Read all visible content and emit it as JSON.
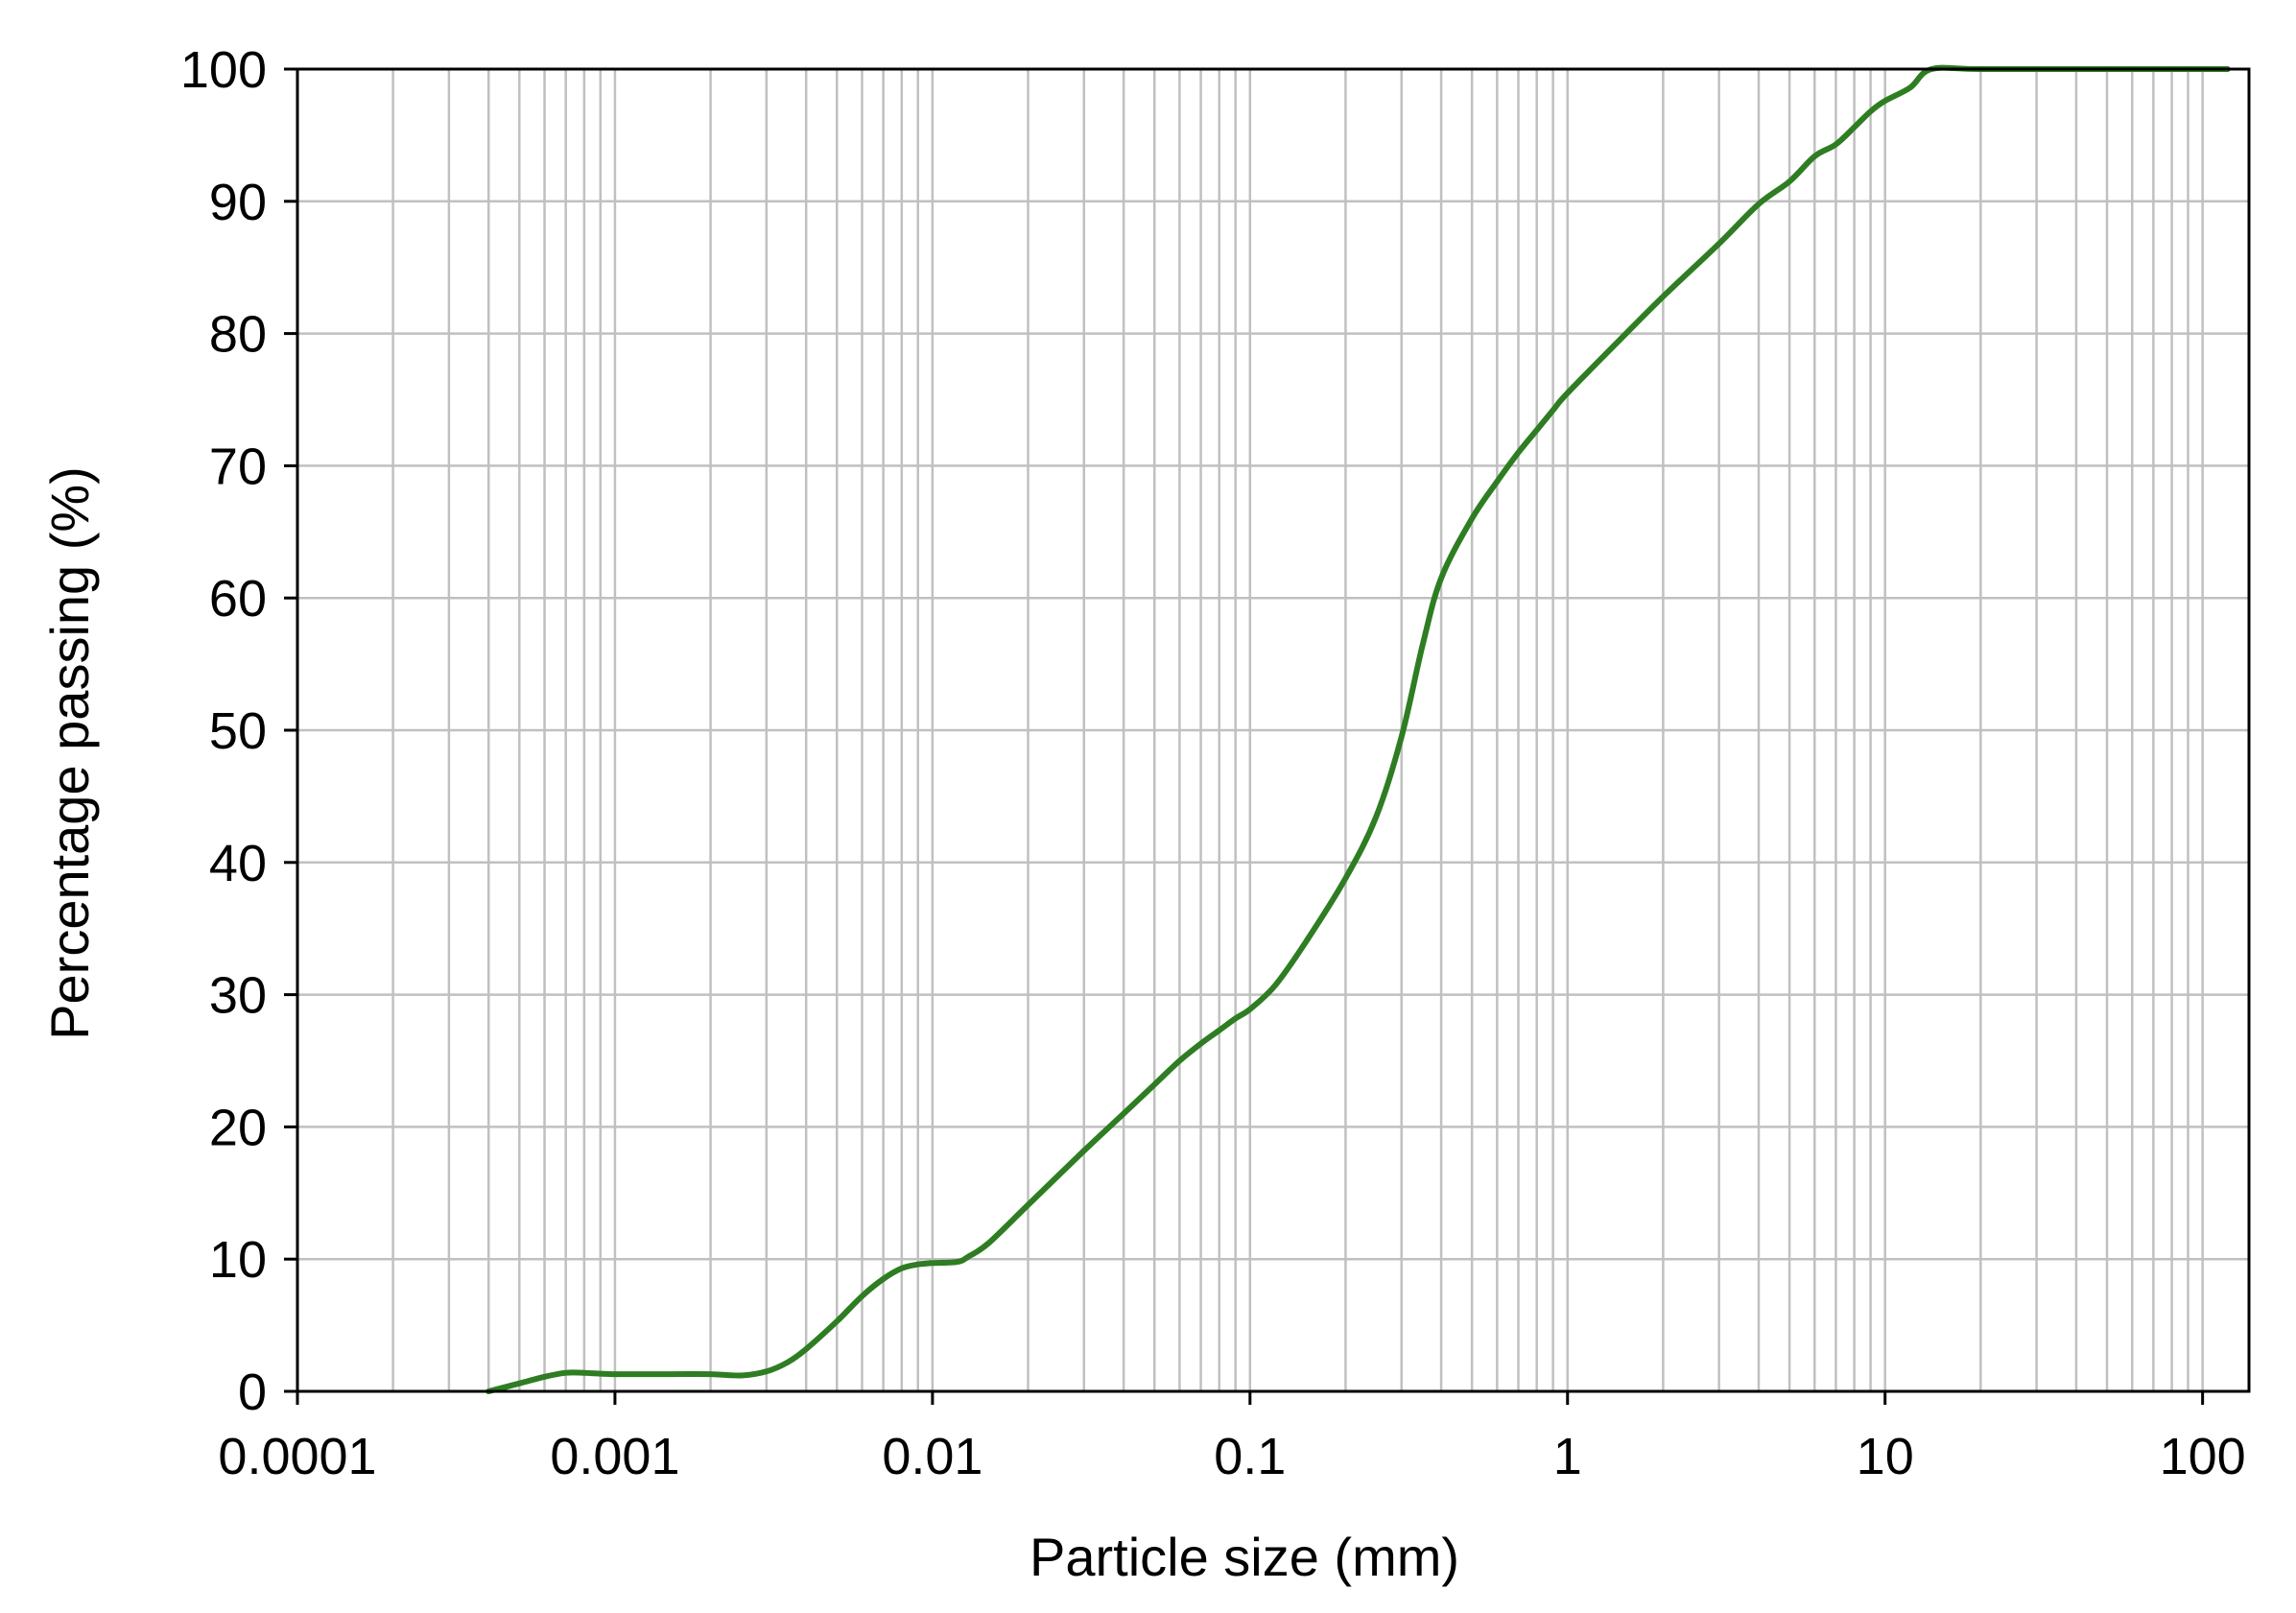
{
  "chart_data": {
    "type": "line",
    "xlabel": "Particle size (mm)",
    "ylabel": "Percentage passing (%)",
    "x_scale": "log",
    "xlim": [
      0.0001,
      140
    ],
    "ylim": [
      0,
      100
    ],
    "grid": true,
    "x_ticks": [
      {
        "value": 0.0001,
        "label": "0.0001"
      },
      {
        "value": 0.001,
        "label": "0.001"
      },
      {
        "value": 0.01,
        "label": "0.01"
      },
      {
        "value": 0.1,
        "label": "0.1"
      },
      {
        "value": 1,
        "label": "1"
      },
      {
        "value": 10,
        "label": "10"
      },
      {
        "value": 100,
        "label": "100"
      }
    ],
    "y_ticks": [
      {
        "value": 0,
        "label": "0"
      },
      {
        "value": 10,
        "label": "10"
      },
      {
        "value": 20,
        "label": "20"
      },
      {
        "value": 30,
        "label": "30"
      },
      {
        "value": 40,
        "label": "40"
      },
      {
        "value": 50,
        "label": "50"
      },
      {
        "value": 60,
        "label": "60"
      },
      {
        "value": 70,
        "label": "70"
      },
      {
        "value": 80,
        "label": "80"
      },
      {
        "value": 90,
        "label": "90"
      },
      {
        "value": 100,
        "label": "100"
      }
    ],
    "series": [
      {
        "color": "#2e7d22",
        "x": [
          0.0004,
          0.0005,
          0.0006,
          0.0007,
          0.0008,
          0.001,
          0.0015,
          0.002,
          0.0025,
          0.003,
          0.0035,
          0.004,
          0.005,
          0.006,
          0.007,
          0.008,
          0.009,
          0.01,
          0.012,
          0.013,
          0.015,
          0.02,
          0.03,
          0.04,
          0.05,
          0.06,
          0.07,
          0.08,
          0.09,
          0.1,
          0.12,
          0.15,
          0.2,
          0.25,
          0.3,
          0.35,
          0.4,
          0.5,
          0.6,
          0.7,
          0.8,
          0.9,
          1,
          1.5,
          2,
          3,
          4,
          5,
          6,
          7,
          8,
          9,
          10,
          12,
          14,
          20,
          50,
          100,
          120
        ],
        "y": [
          0,
          0.6,
          1.1,
          1.4,
          1.4,
          1.3,
          1.3,
          1.3,
          1.2,
          1.5,
          2.2,
          3.2,
          5.3,
          7.2,
          8.5,
          9.3,
          9.6,
          9.7,
          9.8,
          10.2,
          11.2,
          14.1,
          18.2,
          21.0,
          23.2,
          25.0,
          26.3,
          27.3,
          28.2,
          28.9,
          30.7,
          34.0,
          38.8,
          43.5,
          49.5,
          56.5,
          61.5,
          66.0,
          68.8,
          71.0,
          72.7,
          74.2,
          75.5,
          79.8,
          82.8,
          86.8,
          89.8,
          91.5,
          93.4,
          94.3,
          95.6,
          96.8,
          97.6,
          98.6,
          100,
          100,
          100,
          100,
          100
        ]
      }
    ]
  }
}
